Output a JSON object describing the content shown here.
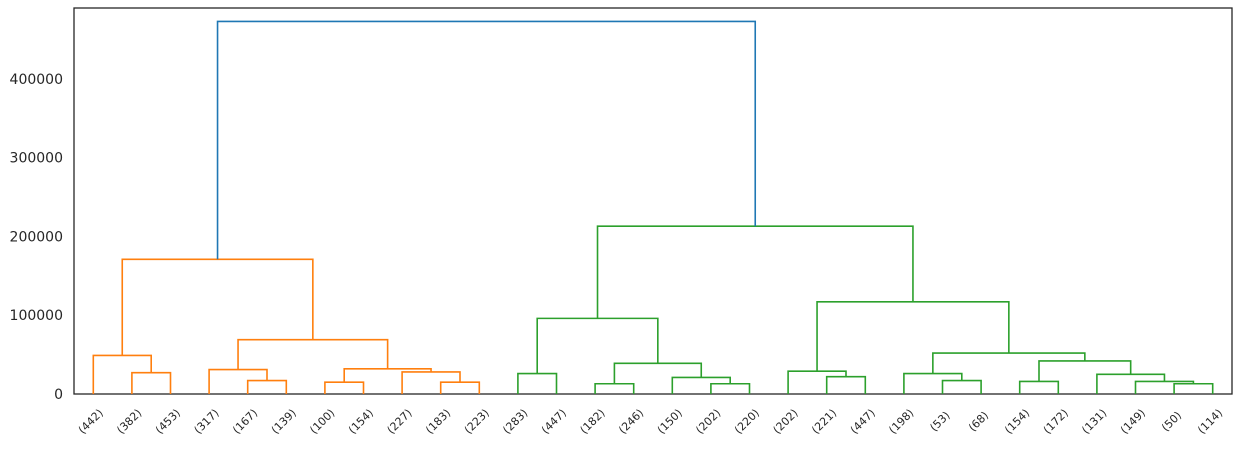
{
  "chart_data": {
    "type": "dendrogram",
    "title": "",
    "xlabel": "",
    "ylabel": "",
    "ylim": [
      0,
      490000
    ],
    "yticks": [
      0,
      100000,
      200000,
      300000,
      400000
    ],
    "ytick_labels": [
      "0",
      "100000",
      "200000",
      "300000",
      "400000"
    ],
    "grid": false,
    "leaf_labels": [
      "(442)",
      "(382)",
      "(453)",
      "(317)",
      "(167)",
      "(139)",
      "(100)",
      "(154)",
      "(227)",
      "(183)",
      "(223)",
      "(283)",
      "(447)",
      "(182)",
      "(246)",
      "(150)",
      "(202)",
      "(220)",
      "(202)",
      "(221)",
      "(447)",
      "(198)",
      "(53)",
      "(68)",
      "(154)",
      "(172)",
      "(131)",
      "(149)",
      "(50)",
      "(114)"
    ],
    "colors": {
      "cluster_1": "#ff7f0e",
      "cluster_2": "#2ca02c",
      "root": "#1f77b4"
    },
    "links": [
      {
        "left": 1,
        "right": 2,
        "height": 27000,
        "color": "cluster_1"
      },
      {
        "left": 0,
        "right": "1+2",
        "height": 49000,
        "color": "cluster_1"
      },
      {
        "left": 4,
        "right": 5,
        "height": 17000,
        "color": "cluster_1"
      },
      {
        "left": 3,
        "right": "4+5",
        "height": 31000,
        "color": "cluster_1"
      },
      {
        "left": 6,
        "right": 7,
        "height": 15000,
        "color": "cluster_1"
      },
      {
        "left": 9,
        "right": 10,
        "height": 15000,
        "color": "cluster_1"
      },
      {
        "left": 8,
        "right": "9+10",
        "height": 28000,
        "color": "cluster_1"
      },
      {
        "left": "6+7",
        "right": "8+9+10",
        "height": 32000,
        "color": "cluster_1"
      },
      {
        "left": "3-5",
        "right": "6-10",
        "height": 69000,
        "color": "cluster_1"
      },
      {
        "left": "0-2",
        "right": "3-10",
        "height": 171000,
        "color": "cluster_1"
      },
      {
        "left": 11,
        "right": 12,
        "height": 26000,
        "color": "cluster_2"
      },
      {
        "left": 13,
        "right": 14,
        "height": 13000,
        "color": "cluster_2"
      },
      {
        "left": 16,
        "right": 17,
        "height": 13000,
        "color": "cluster_2"
      },
      {
        "left": 15,
        "right": "16+17",
        "height": 21000,
        "color": "cluster_2"
      },
      {
        "left": "13+14",
        "right": "15-17",
        "height": 39000,
        "color": "cluster_2"
      },
      {
        "left": "11+12",
        "right": "13-17",
        "height": 96000,
        "color": "cluster_2"
      },
      {
        "left": 19,
        "right": 20,
        "height": 22000,
        "color": "cluster_2"
      },
      {
        "left": 18,
        "right": "19+20",
        "height": 29000,
        "color": "cluster_2"
      },
      {
        "left": 22,
        "right": 23,
        "height": 17000,
        "color": "cluster_2"
      },
      {
        "left": 21,
        "right": "22+23",
        "height": 26000,
        "color": "cluster_2"
      },
      {
        "left": 24,
        "right": 25,
        "height": 16000,
        "color": "cluster_2"
      },
      {
        "left": 28,
        "right": 29,
        "height": 13000,
        "color": "cluster_2"
      },
      {
        "left": 27,
        "right": "28+29",
        "height": 16000,
        "color": "cluster_2"
      },
      {
        "left": 26,
        "right": "27-29",
        "height": 25000,
        "color": "cluster_2"
      },
      {
        "left": "24+25",
        "right": "26-29",
        "height": 42000,
        "color": "cluster_2"
      },
      {
        "left": "21-23",
        "right": "24-29",
        "height": 52000,
        "color": "cluster_2"
      },
      {
        "left": "18-20",
        "right": "21-29",
        "height": 117000,
        "color": "cluster_2"
      },
      {
        "left": "11-17",
        "right": "18-29",
        "height": 213000,
        "color": "cluster_2"
      },
      {
        "left": "0-10",
        "right": "11-29",
        "height": 473000,
        "color": "root"
      }
    ]
  }
}
